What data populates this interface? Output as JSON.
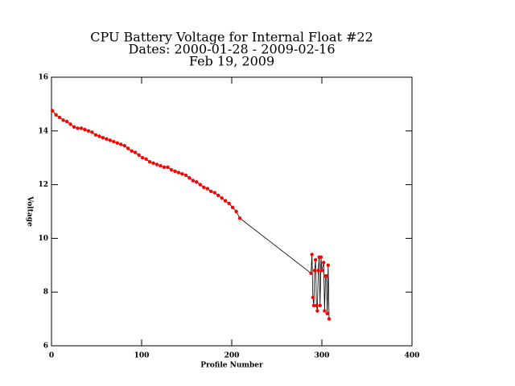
{
  "chart_data": {
    "type": "line",
    "title_lines": [
      "CPU Battery Voltage for Internal Float #22",
      "Dates:  2000-01-28 -  2009-02-16",
      "Feb 19, 2009"
    ],
    "xlabel": "Profile Number",
    "ylabel": "Voltage",
    "x": [
      1,
      5,
      9,
      13,
      17,
      21,
      25,
      29,
      33,
      37,
      41,
      45,
      49,
      53,
      57,
      61,
      65,
      69,
      73,
      77,
      81,
      85,
      89,
      93,
      97,
      101,
      105,
      109,
      113,
      117,
      121,
      125,
      129,
      133,
      137,
      141,
      145,
      149,
      153,
      157,
      161,
      165,
      169,
      173,
      177,
      181,
      185,
      189,
      193,
      197,
      201,
      205,
      209,
      288,
      289,
      290,
      291,
      292,
      293,
      294,
      295,
      296,
      297,
      298,
      299,
      300,
      302,
      303,
      304,
      305,
      306,
      307,
      308
    ],
    "values": [
      14.75,
      14.6,
      14.5,
      14.4,
      14.35,
      14.25,
      14.15,
      14.1,
      14.1,
      14.05,
      14.0,
      13.95,
      13.85,
      13.8,
      13.75,
      13.7,
      13.65,
      13.6,
      13.55,
      13.5,
      13.45,
      13.35,
      13.25,
      13.2,
      13.1,
      13.0,
      12.95,
      12.85,
      12.8,
      12.75,
      12.7,
      12.65,
      12.65,
      12.55,
      12.5,
      12.45,
      12.4,
      12.35,
      12.25,
      12.15,
      12.1,
      12.0,
      11.9,
      11.85,
      11.75,
      11.7,
      11.6,
      11.5,
      11.4,
      11.3,
      11.15,
      11.0,
      10.75,
      8.7,
      9.4,
      7.8,
      7.5,
      8.8,
      9.2,
      7.5,
      7.3,
      8.8,
      9.3,
      7.5,
      9.3,
      8.8,
      9.1,
      7.3,
      8.6,
      8.6,
      7.2,
      9.0,
      7.0
    ],
    "color": "#000000",
    "marker_color": "#ff0000",
    "xlim": [
      0,
      400
    ],
    "xticks": [
      0,
      100,
      200,
      300,
      400
    ],
    "ylim": [
      6,
      16
    ],
    "yticks": [
      6,
      8,
      10,
      12,
      14,
      16
    ]
  }
}
